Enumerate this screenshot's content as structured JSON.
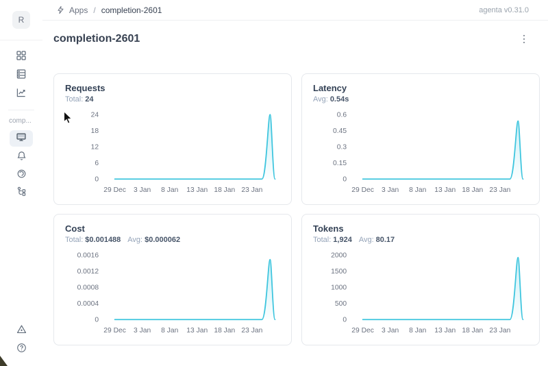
{
  "app": {
    "version": "agenta v0.31.0"
  },
  "header": {
    "breadcrumb": {
      "section": "Apps",
      "separator": "/",
      "current": "completion-2601"
    }
  },
  "sidebar": {
    "avatar_letter": "R",
    "workspace_label": "comp..."
  },
  "page": {
    "title": "completion-2601"
  },
  "accent_color": "#3dc5de",
  "cards": [
    {
      "title": "Requests",
      "stats": [
        {
          "label": "Total:",
          "value": "24"
        }
      ],
      "chart": {
        "type": "area",
        "color": "#3dc5de",
        "x_domain": [
          0,
          29.4
        ],
        "xticks": [
          {
            "x": 0,
            "label": "29 Dec"
          },
          {
            "x": 5,
            "label": "3 Jan"
          },
          {
            "x": 10,
            "label": "8 Jan"
          },
          {
            "x": 15,
            "label": "13 Jan"
          },
          {
            "x": 20,
            "label": "18 Jan"
          },
          {
            "x": 25,
            "label": "23 Jan"
          }
        ],
        "ymax": 24,
        "yticks": [
          {
            "value": 0,
            "label": "0"
          },
          {
            "value": 6,
            "label": "6"
          },
          {
            "value": 12,
            "label": "12"
          },
          {
            "value": 18,
            "label": "18"
          },
          {
            "value": 24,
            "label": "24"
          }
        ],
        "baseline_value": 0,
        "spike": {
          "start": 26.8,
          "peak": 28.3,
          "end": 29.2,
          "value": 24
        }
      }
    },
    {
      "title": "Latency",
      "stats": [
        {
          "label": "Avg:",
          "value": "0.54s"
        }
      ],
      "chart": {
        "type": "area",
        "color": "#3dc5de",
        "x_domain": [
          0,
          29.4
        ],
        "xticks": [
          {
            "x": 0,
            "label": "29 Dec"
          },
          {
            "x": 5,
            "label": "3 Jan"
          },
          {
            "x": 10,
            "label": "8 Jan"
          },
          {
            "x": 15,
            "label": "13 Jan"
          },
          {
            "x": 20,
            "label": "18 Jan"
          },
          {
            "x": 25,
            "label": "23 Jan"
          }
        ],
        "ymax": 0.6,
        "yticks": [
          {
            "value": 0,
            "label": "0"
          },
          {
            "value": 0.15,
            "label": "0.15"
          },
          {
            "value": 0.3,
            "label": "0.3"
          },
          {
            "value": 0.45,
            "label": "0.45"
          },
          {
            "value": 0.6,
            "label": "0.6"
          }
        ],
        "baseline_value": 0,
        "spike": {
          "start": 26.8,
          "peak": 28.3,
          "end": 29.2,
          "value": 0.54
        }
      }
    },
    {
      "title": "Cost",
      "stats": [
        {
          "label": "Total:",
          "value": "$0.001488"
        },
        {
          "label": "Avg:",
          "value": "$0.000062"
        }
      ],
      "chart": {
        "type": "area",
        "color": "#3dc5de",
        "x_domain": [
          0,
          29.4
        ],
        "xticks": [
          {
            "x": 0,
            "label": "29 Dec"
          },
          {
            "x": 5,
            "label": "3 Jan"
          },
          {
            "x": 10,
            "label": "8 Jan"
          },
          {
            "x": 15,
            "label": "13 Jan"
          },
          {
            "x": 20,
            "label": "18 Jan"
          },
          {
            "x": 25,
            "label": "23 Jan"
          }
        ],
        "ymax": 0.0016,
        "yticks": [
          {
            "value": 0,
            "label": "0"
          },
          {
            "value": 0.0004,
            "label": "0.0004"
          },
          {
            "value": 0.0008,
            "label": "0.0008"
          },
          {
            "value": 0.0012,
            "label": "0.0012"
          },
          {
            "value": 0.0016,
            "label": "0.0016"
          }
        ],
        "baseline_value": 0,
        "spike": {
          "start": 26.8,
          "peak": 28.3,
          "end": 29.2,
          "value": 0.001488
        }
      }
    },
    {
      "title": "Tokens",
      "stats": [
        {
          "label": "Total:",
          "value": "1,924"
        },
        {
          "label": "Avg:",
          "value": "80.17"
        }
      ],
      "chart": {
        "type": "area",
        "color": "#3dc5de",
        "x_domain": [
          0,
          29.4
        ],
        "xticks": [
          {
            "x": 0,
            "label": "29 Dec"
          },
          {
            "x": 5,
            "label": "3 Jan"
          },
          {
            "x": 10,
            "label": "8 Jan"
          },
          {
            "x": 15,
            "label": "13 Jan"
          },
          {
            "x": 20,
            "label": "18 Jan"
          },
          {
            "x": 25,
            "label": "23 Jan"
          }
        ],
        "ymax": 2000,
        "yticks": [
          {
            "value": 0,
            "label": "0"
          },
          {
            "value": 500,
            "label": "500"
          },
          {
            "value": 1000,
            "label": "1000"
          },
          {
            "value": 1500,
            "label": "1500"
          },
          {
            "value": 2000,
            "label": "2000"
          }
        ],
        "baseline_value": 0,
        "spike": {
          "start": 26.8,
          "peak": 28.3,
          "end": 29.2,
          "value": 1924
        }
      }
    }
  ]
}
